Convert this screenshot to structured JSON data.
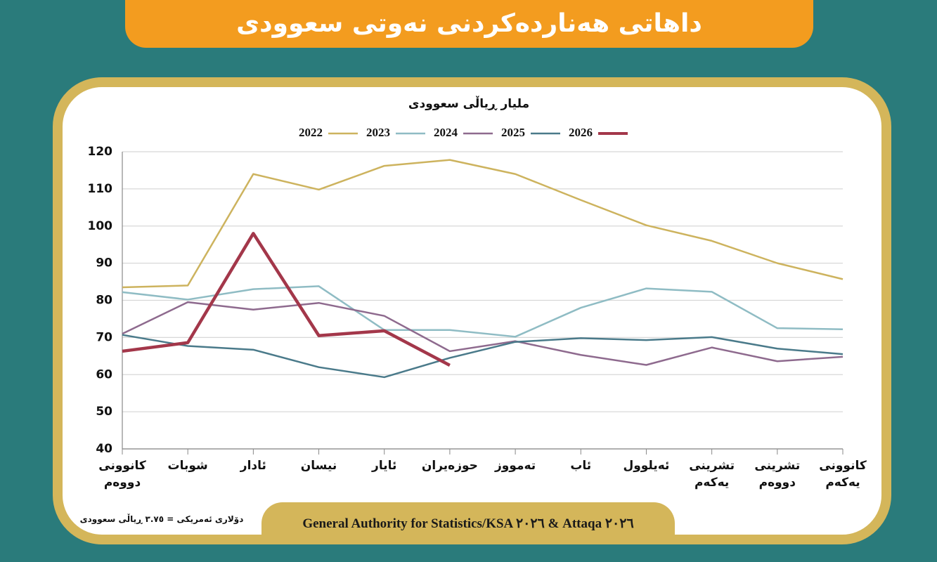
{
  "title": "داهاتی هەناردەکردنی نەوتی سعوودی",
  "chart_data": {
    "type": "line",
    "subtitle": "ملیار ڕیاڵی سعوودی",
    "categories": [
      "كانوونی دووەم",
      "شوبات",
      "ئادار",
      "نیسان",
      "ئایار",
      "حوزەیران",
      "تەمووز",
      "ئاب",
      "ئەیلوول",
      "تشرینی یەکەم",
      "تشرینی دووەم",
      "كانوونی یەکەم"
    ],
    "series": [
      {
        "name": "2022",
        "color": "#cdb35e",
        "values": [
          83.5,
          84,
          114,
          109.8,
          116.2,
          117.8,
          114,
          107,
          100.2,
          96,
          90,
          85.7
        ]
      },
      {
        "name": "2023",
        "color": "#8fbcc4",
        "values": [
          82.2,
          80.2,
          83,
          83.8,
          72,
          72,
          70.2,
          78,
          83.2,
          82.3,
          72.5,
          72.2
        ]
      },
      {
        "name": "2024",
        "color": "#8e6a8e",
        "values": [
          71,
          79.5,
          77.5,
          79.3,
          75.8,
          66.3,
          69,
          65.3,
          62.6,
          67.3,
          63.6,
          64.8
        ]
      },
      {
        "name": "2025",
        "color": "#4a7a8a",
        "values": [
          70.7,
          67.7,
          66.7,
          62,
          59.3,
          64.5,
          68.8,
          69.8,
          69.3,
          70.1,
          67,
          65.5
        ]
      },
      {
        "name": "2026",
        "color": "#a3374a",
        "values": [
          66.3,
          68.6,
          98,
          70.5,
          71.8,
          62.5,
          null,
          null,
          null,
          null,
          null,
          null
        ]
      }
    ],
    "ylim": [
      40,
      120
    ],
    "yticks": [
      40,
      50,
      60,
      70,
      80,
      90,
      100,
      110,
      120
    ],
    "grid": true
  },
  "footnote": "دۆلاری ئەمریکی = ٣.٧٥ ڕیاڵی سعوودی",
  "source": "General Authority for Statistics/KSA ٢٠٢٦ & Attaqa ٢٠٢٦"
}
